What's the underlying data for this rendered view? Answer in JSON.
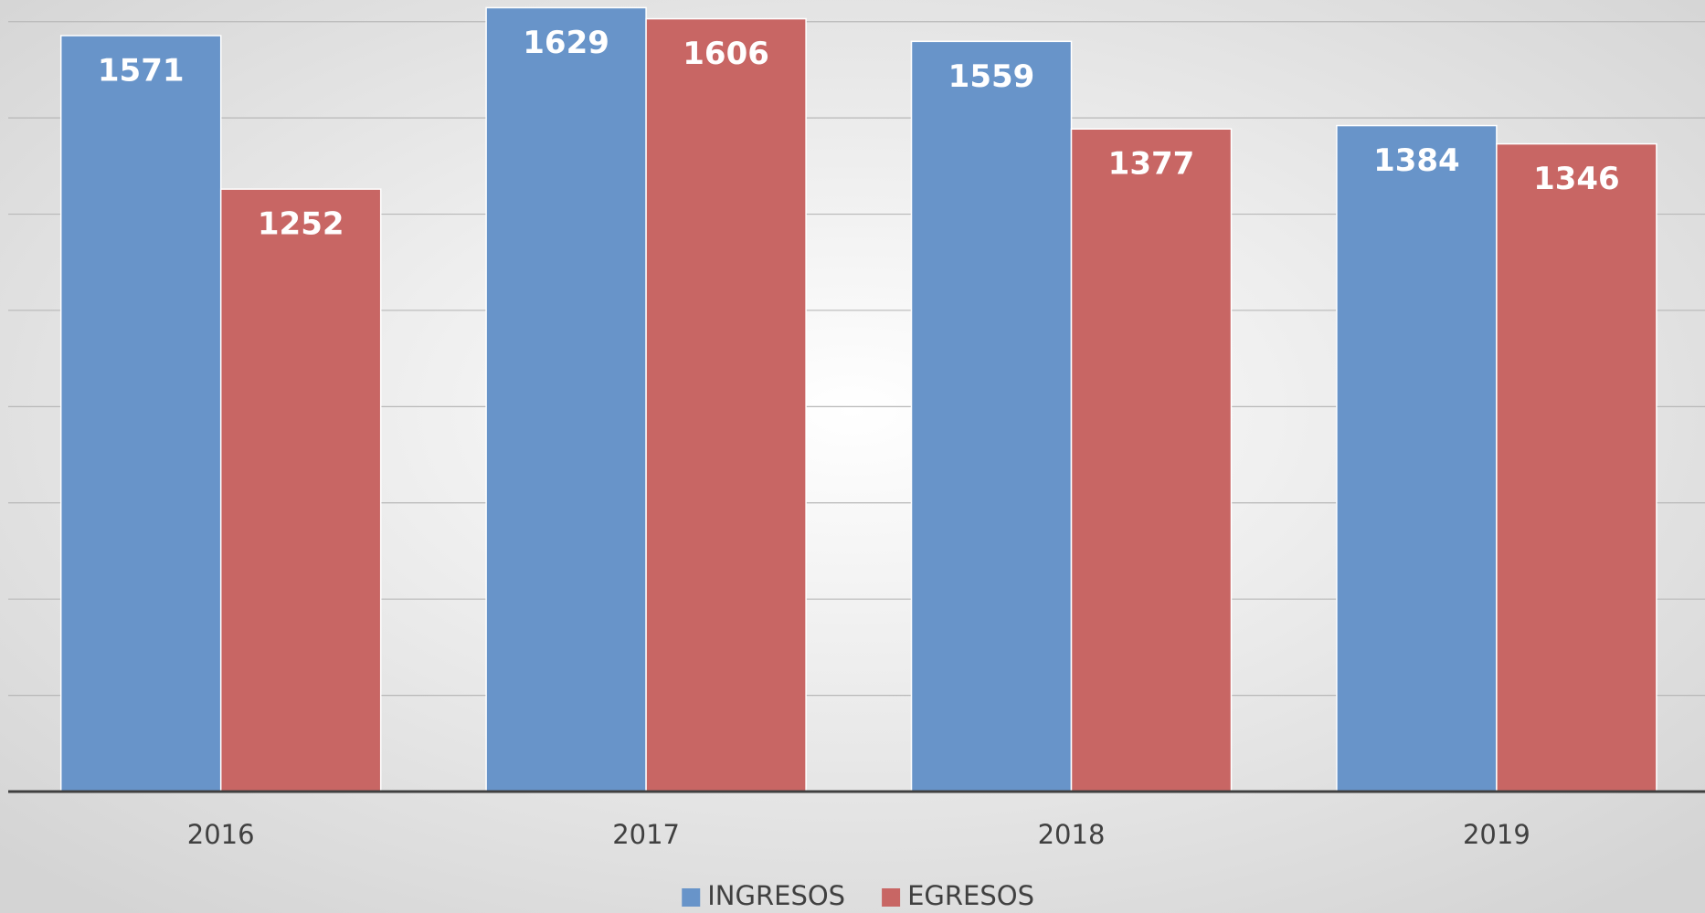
{
  "chart_data": {
    "type": "bar",
    "categories": [
      "2016",
      "2017",
      "2018",
      "2019"
    ],
    "series": [
      {
        "name": "INGRESOS",
        "color": "#6894c9",
        "values": [
          1571,
          1629,
          1559,
          1384
        ]
      },
      {
        "name": "EGRESOS",
        "color": "#c86664",
        "values": [
          1252,
          1606,
          1377,
          1346
        ]
      }
    ],
    "ylim": [
      0,
      1645
    ],
    "yticks": [
      0,
      200,
      400,
      600,
      800,
      1000,
      1200,
      1400,
      1600
    ],
    "grid": true,
    "legend": "bottom"
  }
}
